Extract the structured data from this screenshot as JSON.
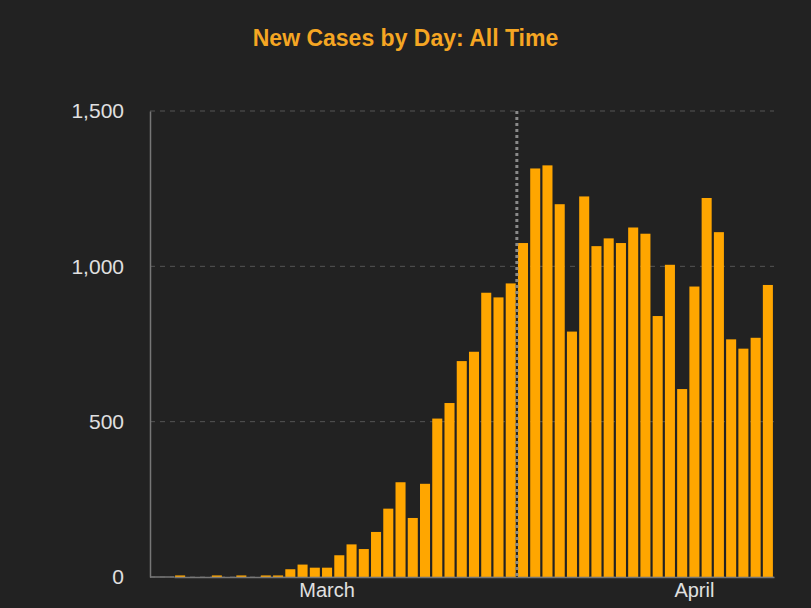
{
  "chart_data": {
    "type": "bar",
    "title": "New Cases by Day: All Time",
    "categories": [
      null,
      null,
      null,
      null,
      null,
      null,
      null,
      null,
      null,
      null,
      null,
      null,
      "March",
      null,
      null,
      null,
      null,
      null,
      null,
      null,
      null,
      null,
      null,
      null,
      null,
      null,
      null,
      null,
      null,
      null,
      null,
      null,
      null,
      null,
      null,
      null,
      null,
      null,
      null,
      null,
      null,
      null,
      "April",
      null,
      null,
      null,
      null,
      null,
      null
    ],
    "values": [
      5,
      0,
      0,
      5,
      0,
      5,
      0,
      5,
      5,
      25,
      40,
      30,
      30,
      70,
      105,
      90,
      145,
      220,
      305,
      190,
      300,
      510,
      560,
      695,
      725,
      915,
      900,
      945,
      1075,
      1315,
      1325,
      1200,
      790,
      1225,
      1065,
      1090,
      1075,
      1125,
      1105,
      840,
      1005,
      605,
      935,
      1220,
      1110,
      765,
      735,
      770,
      940
    ],
    "color": "#ffa600",
    "ylim": [
      0,
      1500
    ],
    "yticks": [
      0,
      500,
      {
        "value": 1000,
        "label": "1,000"
      },
      {
        "value": 1500,
        "label": "1,500"
      }
    ],
    "grid": true,
    "annotations": [
      {
        "type": "vline",
        "x": 27.5
      }
    ]
  }
}
